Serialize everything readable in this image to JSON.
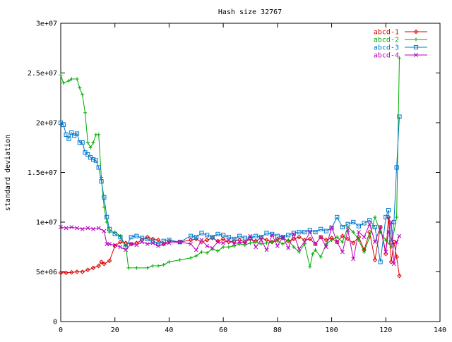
{
  "chart_data": {
    "type": "line",
    "title": "Hash size 32767",
    "xlabel": "",
    "ylabel": "standard deviation",
    "xlim": [
      0,
      140
    ],
    "ylim": [
      0,
      30000000
    ],
    "x_ticks": [
      0,
      20,
      40,
      60,
      80,
      100,
      120,
      140
    ],
    "x_tick_labels": [
      "0",
      "20",
      "40",
      "60",
      "80",
      "100",
      "120",
      "140"
    ],
    "y_ticks": [
      0,
      5000000,
      10000000,
      15000000,
      20000000,
      25000000,
      30000000
    ],
    "y_tick_labels": [
      "0",
      "5e+06",
      "1e+07",
      "1.5e+07",
      "2e+07",
      "2.5e+07",
      "3e+07"
    ],
    "grid": false,
    "legend_position": "top-right",
    "series": [
      {
        "name": "abcd-1",
        "color": "#dd0000",
        "marker": "diamond",
        "points": [
          [
            0,
            4900000.0
          ],
          [
            2,
            4900000.0
          ],
          [
            4,
            4950000.0
          ],
          [
            6,
            5000000.0
          ],
          [
            8,
            5000000.0
          ],
          [
            10,
            5200000.0
          ],
          [
            12,
            5400000.0
          ],
          [
            14,
            5600000.0
          ],
          [
            15,
            6000000.0
          ],
          [
            16,
            5800000.0
          ],
          [
            18,
            6100000.0
          ],
          [
            20,
            7600000.0
          ],
          [
            22,
            8000000.0
          ],
          [
            24,
            7900000.0
          ],
          [
            26,
            7800000.0
          ],
          [
            28,
            7900000.0
          ],
          [
            30,
            8200000.0
          ],
          [
            32,
            8500000.0
          ],
          [
            34,
            8300000.0
          ],
          [
            36,
            8200000.0
          ],
          [
            38,
            7800000.0
          ],
          [
            40,
            8100000.0
          ],
          [
            44,
            8000000.0
          ],
          [
            48,
            8200000.0
          ],
          [
            50,
            8300000.0
          ],
          [
            52,
            8000000.0
          ],
          [
            54,
            8200000.0
          ],
          [
            56,
            8400000.0
          ],
          [
            58,
            8100000.0
          ],
          [
            60,
            8300000.0
          ],
          [
            62,
            8000000.0
          ],
          [
            64,
            8100000.0
          ],
          [
            66,
            8200000.0
          ],
          [
            68,
            8000000.0
          ],
          [
            70,
            8300000.0
          ],
          [
            72,
            8100000.0
          ],
          [
            74,
            8400000.0
          ],
          [
            76,
            8200000.0
          ],
          [
            78,
            8000000.0
          ],
          [
            80,
            8300000.0
          ],
          [
            82,
            8400000.0
          ],
          [
            84,
            8100000.0
          ],
          [
            86,
            8300000.0
          ],
          [
            88,
            8500000.0
          ],
          [
            90,
            8200000.0
          ],
          [
            92,
            8300000.0
          ],
          [
            94,
            7800000.0
          ],
          [
            96,
            8500000.0
          ],
          [
            98,
            8200000.0
          ],
          [
            100,
            8400000.0
          ],
          [
            102,
            8000000.0
          ],
          [
            104,
            8600000.0
          ],
          [
            106,
            8300000.0
          ],
          [
            108,
            7900000.0
          ],
          [
            110,
            8500000.0
          ],
          [
            112,
            7200000.0
          ],
          [
            114,
            9000000.0
          ],
          [
            116,
            6200000.0
          ],
          [
            118,
            9500000.0
          ],
          [
            120,
            6800000.0
          ],
          [
            121,
            10500000.0
          ],
          [
            122,
            6000000.0
          ],
          [
            123,
            8000000.0
          ],
          [
            124,
            6500000.0
          ],
          [
            125,
            4600000.0
          ]
        ]
      },
      {
        "name": "abcd-2",
        "color": "#00aa00",
        "marker": "plus",
        "points": [
          [
            0,
            24800000.0
          ],
          [
            1,
            24000000.0
          ],
          [
            3,
            24200000.0
          ],
          [
            4,
            24400000.0
          ],
          [
            6,
            24400000.0
          ],
          [
            7,
            23500000.0
          ],
          [
            8,
            22800000.0
          ],
          [
            9,
            21000000.0
          ],
          [
            10,
            18000000.0
          ],
          [
            11,
            17500000.0
          ],
          [
            12,
            18000000.0
          ],
          [
            13,
            18800000.0
          ],
          [
            14,
            18800000.0
          ],
          [
            15,
            14500000.0
          ],
          [
            16,
            11500000.0
          ],
          [
            17,
            10000000.0
          ],
          [
            18,
            9000000.0
          ],
          [
            20,
            9000000.0
          ],
          [
            22,
            8600000.0
          ],
          [
            24,
            7600000.0
          ],
          [
            25,
            5400000.0
          ],
          [
            28,
            5400000.0
          ],
          [
            32,
            5400000.0
          ],
          [
            34,
            5600000.0
          ],
          [
            36,
            5600000.0
          ],
          [
            38,
            5700000.0
          ],
          [
            40,
            6000000.0
          ],
          [
            44,
            6200000.0
          ],
          [
            48,
            6400000.0
          ],
          [
            50,
            6600000.0
          ],
          [
            52,
            7000000.0
          ],
          [
            54,
            6900000.0
          ],
          [
            56,
            7300000.0
          ],
          [
            58,
            7100000.0
          ],
          [
            60,
            7500000.0
          ],
          [
            62,
            7500000.0
          ],
          [
            64,
            7600000.0
          ],
          [
            66,
            7800000.0
          ],
          [
            68,
            7700000.0
          ],
          [
            70,
            7900000.0
          ],
          [
            72,
            8000000.0
          ],
          [
            74,
            7800000.0
          ],
          [
            76,
            7900000.0
          ],
          [
            78,
            8000000.0
          ],
          [
            80,
            8100000.0
          ],
          [
            82,
            7800000.0
          ],
          [
            84,
            8200000.0
          ],
          [
            86,
            7500000.0
          ],
          [
            88,
            7000000.0
          ],
          [
            90,
            7800000.0
          ],
          [
            92,
            5500000.0
          ],
          [
            93,
            6800000.0
          ],
          [
            94,
            7200000.0
          ],
          [
            96,
            6500000.0
          ],
          [
            98,
            7800000.0
          ],
          [
            100,
            8200000.0
          ],
          [
            102,
            8500000.0
          ],
          [
            104,
            8000000.0
          ],
          [
            106,
            9500000.0
          ],
          [
            108,
            9000000.0
          ],
          [
            110,
            8200000.0
          ],
          [
            112,
            7000000.0
          ],
          [
            114,
            8500000.0
          ],
          [
            116,
            10500000.0
          ],
          [
            118,
            9000000.0
          ],
          [
            120,
            8200000.0
          ],
          [
            122,
            7500000.0
          ],
          [
            124,
            10500000.0
          ],
          [
            125,
            26500000.0
          ]
        ]
      },
      {
        "name": "abcd-3",
        "color": "#0077cc",
        "marker": "square",
        "points": [
          [
            0,
            20000000.0
          ],
          [
            1,
            19800000.0
          ],
          [
            2,
            18800000.0
          ],
          [
            3,
            18400000.0
          ],
          [
            4,
            19000000.0
          ],
          [
            5,
            18700000.0
          ],
          [
            6,
            18900000.0
          ],
          [
            7,
            18000000.0
          ],
          [
            8,
            18000000.0
          ],
          [
            9,
            17000000.0
          ],
          [
            10,
            16800000.0
          ],
          [
            11,
            16500000.0
          ],
          [
            12,
            16300000.0
          ],
          [
            13,
            16200000.0
          ],
          [
            14,
            15500000.0
          ],
          [
            15,
            14100000.0
          ],
          [
            16,
            12500000.0
          ],
          [
            17,
            10500000.0
          ],
          [
            18,
            9300000.0
          ],
          [
            20,
            8800000.0
          ],
          [
            22,
            8500000.0
          ],
          [
            24,
            7500000.0
          ],
          [
            26,
            8500000.0
          ],
          [
            28,
            8600000.0
          ],
          [
            30,
            8400000.0
          ],
          [
            32,
            8300000.0
          ],
          [
            34,
            8100000.0
          ],
          [
            36,
            7800000.0
          ],
          [
            38,
            8100000.0
          ],
          [
            40,
            8200000.0
          ],
          [
            44,
            8000000.0
          ],
          [
            48,
            8600000.0
          ],
          [
            50,
            8500000.0
          ],
          [
            52,
            8900000.0
          ],
          [
            54,
            8700000.0
          ],
          [
            56,
            8500000.0
          ],
          [
            58,
            8800000.0
          ],
          [
            60,
            8700000.0
          ],
          [
            62,
            8500000.0
          ],
          [
            64,
            8300000.0
          ],
          [
            66,
            8600000.0
          ],
          [
            68,
            8400000.0
          ],
          [
            70,
            8400000.0
          ],
          [
            72,
            8600000.0
          ],
          [
            74,
            8500000.0
          ],
          [
            76,
            8900000.0
          ],
          [
            78,
            8800000.0
          ],
          [
            80,
            8600000.0
          ],
          [
            82,
            8500000.0
          ],
          [
            84,
            8700000.0
          ],
          [
            86,
            8900000.0
          ],
          [
            88,
            9000000.0
          ],
          [
            90,
            9000000.0
          ],
          [
            92,
            9200000.0
          ],
          [
            94,
            9000000.0
          ],
          [
            96,
            9300000.0
          ],
          [
            98,
            9100000.0
          ],
          [
            100,
            9400000.0
          ],
          [
            102,
            10500000.0
          ],
          [
            104,
            9500000.0
          ],
          [
            106,
            9800000.0
          ],
          [
            108,
            10000000.0
          ],
          [
            110,
            9600000.0
          ],
          [
            112,
            9900000.0
          ],
          [
            114,
            10200000.0
          ],
          [
            116,
            9500000.0
          ],
          [
            118,
            6000000.0
          ],
          [
            120,
            10500000.0
          ],
          [
            121,
            11200000.0
          ],
          [
            122,
            8000000.0
          ],
          [
            123,
            10000000.0
          ],
          [
            124,
            15500000.0
          ],
          [
            125,
            20600000.0
          ]
        ]
      },
      {
        "name": "abcd-4",
        "color": "#bb00bb",
        "marker": "cross",
        "points": [
          [
            0,
            9500000.0
          ],
          [
            2,
            9400000.0
          ],
          [
            4,
            9500000.0
          ],
          [
            6,
            9400000.0
          ],
          [
            8,
            9300000.0
          ],
          [
            10,
            9400000.0
          ],
          [
            12,
            9300000.0
          ],
          [
            14,
            9400000.0
          ],
          [
            16,
            9100000.0
          ],
          [
            17,
            7800000.0
          ],
          [
            18,
            7800000.0
          ],
          [
            20,
            7700000.0
          ],
          [
            22,
            7500000.0
          ],
          [
            24,
            7200000.0
          ],
          [
            26,
            7800000.0
          ],
          [
            28,
            7700000.0
          ],
          [
            30,
            8000000.0
          ],
          [
            32,
            7800000.0
          ],
          [
            34,
            7900000.0
          ],
          [
            36,
            7600000.0
          ],
          [
            38,
            7800000.0
          ],
          [
            40,
            7900000.0
          ],
          [
            44,
            8000000.0
          ],
          [
            48,
            7800000.0
          ],
          [
            50,
            7200000.0
          ],
          [
            52,
            8200000.0
          ],
          [
            54,
            7600000.0
          ],
          [
            56,
            7400000.0
          ],
          [
            58,
            8000000.0
          ],
          [
            60,
            7900000.0
          ],
          [
            62,
            8200000.0
          ],
          [
            64,
            7800000.0
          ],
          [
            66,
            8000000.0
          ],
          [
            68,
            7900000.0
          ],
          [
            70,
            8600000.0
          ],
          [
            72,
            7500000.0
          ],
          [
            74,
            8200000.0
          ],
          [
            76,
            7200000.0
          ],
          [
            78,
            8700000.0
          ],
          [
            80,
            7600000.0
          ],
          [
            82,
            8500000.0
          ],
          [
            84,
            7400000.0
          ],
          [
            86,
            8800000.0
          ],
          [
            88,
            7300000.0
          ],
          [
            90,
            8000000.0
          ],
          [
            92,
            9000000.0
          ],
          [
            94,
            7800000.0
          ],
          [
            96,
            8500000.0
          ],
          [
            98,
            7500000.0
          ],
          [
            100,
            9500000.0
          ],
          [
            102,
            8000000.0
          ],
          [
            104,
            7000000.0
          ],
          [
            106,
            9200000.0
          ],
          [
            108,
            6300000.0
          ],
          [
            110,
            9000000.0
          ],
          [
            112,
            8500000.0
          ],
          [
            114,
            9800000.0
          ],
          [
            116,
            8000000.0
          ],
          [
            118,
            9500000.0
          ],
          [
            120,
            7000000.0
          ],
          [
            121,
            9000000.0
          ],
          [
            122,
            10000000.0
          ],
          [
            123,
            5800000.0
          ],
          [
            124,
            8000000.0
          ],
          [
            125,
            8600000.0
          ]
        ]
      }
    ]
  }
}
